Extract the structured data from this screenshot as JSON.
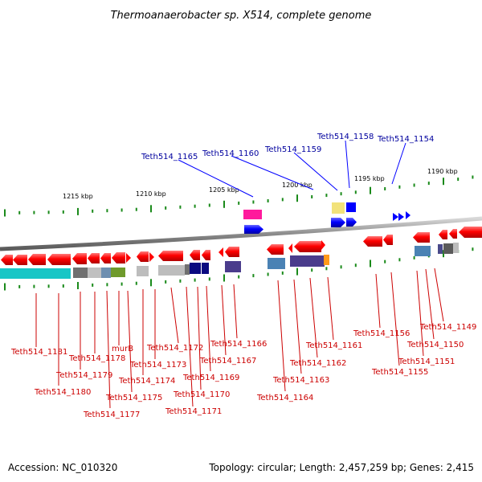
{
  "title": "Thermoanaerobacter sp. X514, complete genome",
  "footer": {
    "accession": "Accession: NC_010320",
    "topology": "Topology: circular; Length: 2,457,259 bp; Genes: 2,415"
  },
  "scale_labels": [
    "1215 kbp",
    "1210 kbp",
    "1205 kbp",
    "1200 kbp",
    "1195 kbp",
    "1190 kbp"
  ],
  "top_strand_labels": [
    "Teth514_1165",
    "Teth514_1160",
    "Teth514_1159",
    "Teth514_1158",
    "Teth514_1154"
  ],
  "bottom_strand_labels": [
    "Teth514_1181",
    "Teth514_1180",
    "Teth514_1179",
    "Teth514_1178",
    "Teth514_1177",
    "murB",
    "Teth514_1175",
    "Teth514_1174",
    "Teth514_1173",
    "Teth514_1172",
    "Teth514_1171",
    "Teth514_1170",
    "Teth514_1169",
    "Teth514_1167",
    "Teth514_1166",
    "Teth514_1164",
    "Teth514_1163",
    "Teth514_1162",
    "Teth514_1161",
    "Teth514_1156",
    "Teth514_1155",
    "Teth514_1151",
    "Teth514_1150",
    "Teth514_1149"
  ],
  "colors": {
    "gene": "#ff0000",
    "top_gene": "#0000ff",
    "top_label": "#00009e",
    "bottom_label": "#cc0000",
    "tick": "#1a8a1a",
    "backbone": "#8c8c8c"
  }
}
